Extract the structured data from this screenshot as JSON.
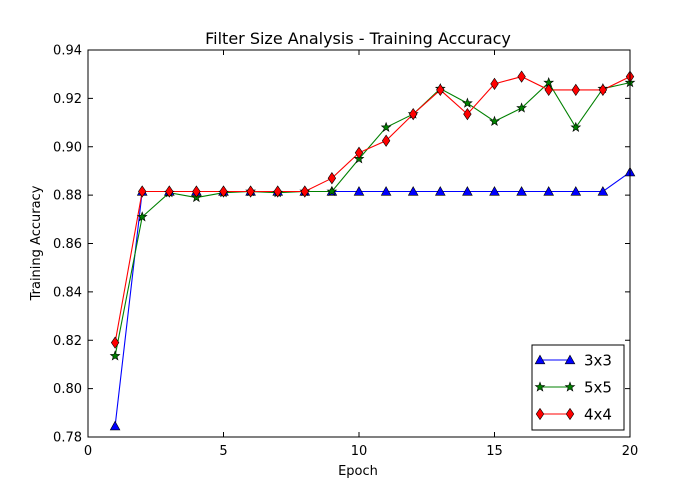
{
  "chart_data": {
    "type": "line",
    "title": "Filter Size Analysis - Training Accuracy",
    "xlabel": "Epoch",
    "ylabel": "Training Accuracy",
    "xlim": [
      0,
      20
    ],
    "ylim": [
      0.78,
      0.94
    ],
    "xticks": [
      0,
      5,
      10,
      15,
      20
    ],
    "yticks": [
      0.78,
      0.8,
      0.82,
      0.84,
      0.86,
      0.88,
      0.9,
      0.92,
      0.94
    ],
    "ytick_format": 2,
    "grid": false,
    "legend_position": "lower-right",
    "x": [
      1,
      2,
      3,
      4,
      5,
      6,
      7,
      8,
      9,
      10,
      11,
      12,
      13,
      14,
      15,
      16,
      17,
      18,
      19,
      20
    ],
    "series": [
      {
        "name": "3x3",
        "color": "#0000ff",
        "marker": "triangle",
        "values": [
          0.7845,
          0.8815,
          0.8815,
          0.8815,
          0.8815,
          0.8815,
          0.8815,
          0.8815,
          0.8815,
          0.8815,
          0.8815,
          0.8815,
          0.8815,
          0.8815,
          0.8815,
          0.8815,
          0.8815,
          0.8815,
          0.8815,
          0.8895
        ]
      },
      {
        "name": "5x5",
        "color": "#008000",
        "marker": "star",
        "values": [
          0.8135,
          0.871,
          0.881,
          0.879,
          0.881,
          0.8815,
          0.881,
          0.8815,
          0.8815,
          0.895,
          0.908,
          0.9135,
          0.924,
          0.918,
          0.9105,
          0.916,
          0.9265,
          0.908,
          0.924,
          0.9265
        ]
      },
      {
        "name": "4x4",
        "color": "#ff0000",
        "marker": "diamond",
        "values": [
          0.819,
          0.8815,
          0.8815,
          0.8815,
          0.8815,
          0.8815,
          0.8815,
          0.8815,
          0.887,
          0.8975,
          0.9025,
          0.9135,
          0.9235,
          0.9135,
          0.926,
          0.929,
          0.9235,
          0.9235,
          0.9235,
          0.929
        ]
      }
    ]
  }
}
